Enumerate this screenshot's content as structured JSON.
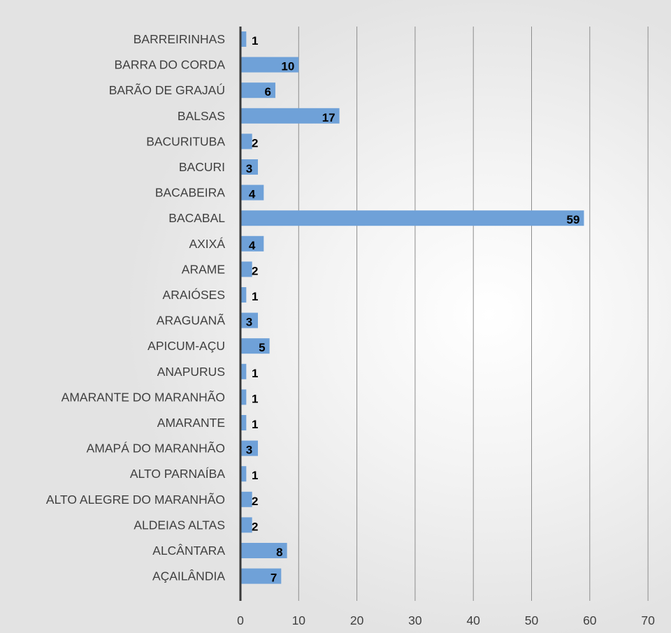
{
  "chart_data": {
    "type": "bar",
    "orientation": "horizontal",
    "categories": [
      "BARREIRINHAS",
      "BARRA DO CORDA",
      "BARÃO DE GRAJAÚ",
      "BALSAS",
      "BACURITUBA",
      "BACURI",
      "BACABEIRA",
      "BACABAL",
      "AXIXÁ",
      "ARAME",
      "ARAIÓSES",
      "ARAGUANÃ",
      "APICUM-AÇU",
      "ANAPURUS",
      "AMARANTE DO MARANHÃO",
      "AMARANTE",
      "AMAPÁ DO MARANHÃO",
      "ALTO PARNAÍBA",
      "ALTO ALEGRE DO MARANHÃO",
      "ALDEIAS ALTAS",
      "ALCÂNTARA",
      "AÇAILÂNDIA"
    ],
    "values": [
      1,
      10,
      6,
      17,
      2,
      3,
      4,
      59,
      4,
      2,
      1,
      3,
      5,
      1,
      1,
      1,
      3,
      1,
      2,
      2,
      8,
      7
    ],
    "data_labels": [
      "1",
      "10",
      "6",
      "17",
      "2",
      "3",
      "4",
      "59",
      "4",
      "2",
      "1",
      "3",
      "5",
      "1",
      "1",
      "1",
      "3",
      "1",
      "2",
      "2",
      "8",
      "7"
    ],
    "xlim": [
      0,
      70
    ],
    "x_ticks": [
      "0",
      "10",
      "20",
      "30",
      "40",
      "50",
      "60",
      "70"
    ],
    "grid": true,
    "bar_color": "#6fa1d8",
    "title": "",
    "xlabel": "",
    "ylabel": ""
  }
}
